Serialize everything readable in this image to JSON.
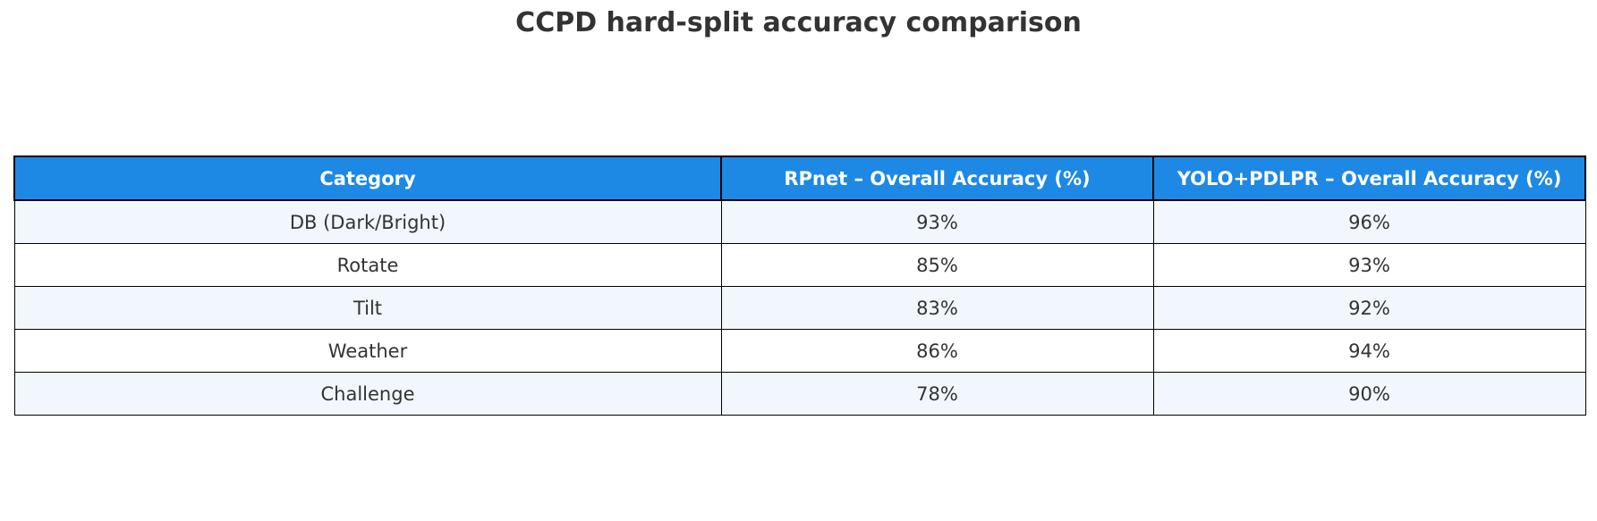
{
  "chart_data": {
    "type": "table",
    "title": "CCPD hard-split accuracy comparison",
    "columns": [
      "Category",
      "RPnet – Overall Accuracy (%)",
      "YOLO+PDLPR – Overall Accuracy (%)"
    ],
    "rows": [
      [
        "DB (Dark/Bright)",
        "93%",
        "96%"
      ],
      [
        "Rotate",
        "85%",
        "93%"
      ],
      [
        "Tilt",
        "83%",
        "92%"
      ],
      [
        "Weather",
        "86%",
        "94%"
      ],
      [
        "Challenge",
        "78%",
        "90%"
      ]
    ],
    "series": [
      {
        "name": "RPnet – Overall Accuracy (%)",
        "values": [
          93,
          85,
          83,
          86,
          78
        ]
      },
      {
        "name": "YOLO+PDLPR – Overall Accuracy (%)",
        "values": [
          96,
          93,
          92,
          94,
          90
        ]
      }
    ],
    "categories": [
      "DB (Dark/Bright)",
      "Rotate",
      "Tilt",
      "Weather",
      "Challenge"
    ]
  },
  "colors": {
    "header_bg": "#1e88e5",
    "header_text": "#ffffff",
    "row_alt_bg": "#f2f7fd",
    "row_bg": "#ffffff",
    "text": "#333333"
  }
}
